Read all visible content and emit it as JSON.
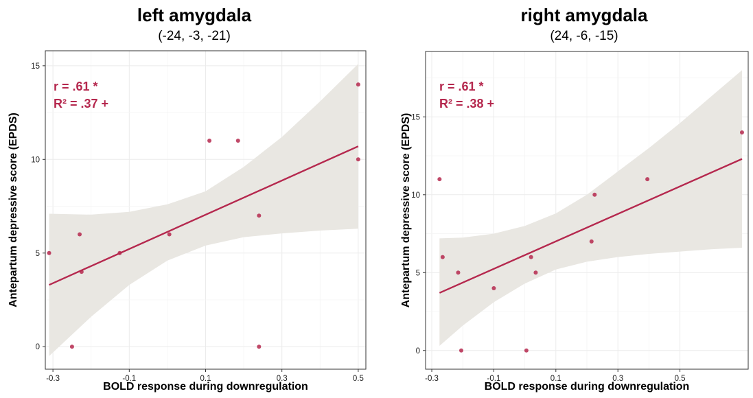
{
  "accent_color": "#b5284e",
  "ribbon_color": "#e9e7e2",
  "chart_data": [
    {
      "type": "scatter",
      "title": "left amygdala",
      "subtitle": "(-24, -3, -21)",
      "xlabel": "BOLD response during downregulation",
      "ylabel": "Antepartum depressive score (EPDS)",
      "xlim": [
        -0.32,
        0.52
      ],
      "ylim": [
        -1.2,
        15.8
      ],
      "xticks": [
        -0.3,
        -0.1,
        0.1,
        0.3,
        0.5
      ],
      "xtick_labels": [
        "-0.3",
        "-0.1",
        "0.1",
        "0.3",
        "0.5"
      ],
      "yticks": [
        0,
        5,
        10,
        15
      ],
      "ytick_labels": [
        "0",
        "5",
        "10",
        "15"
      ],
      "grid": true,
      "points": [
        {
          "x": -0.31,
          "y": 5
        },
        {
          "x": -0.25,
          "y": 0
        },
        {
          "x": -0.23,
          "y": 6
        },
        {
          "x": -0.225,
          "y": 4
        },
        {
          "x": -0.125,
          "y": 5
        },
        {
          "x": 0.005,
          "y": 6
        },
        {
          "x": 0.11,
          "y": 11
        },
        {
          "x": 0.185,
          "y": 11
        },
        {
          "x": 0.24,
          "y": 0
        },
        {
          "x": 0.24,
          "y": 7
        },
        {
          "x": 0.5,
          "y": 14
        },
        {
          "x": 0.5,
          "y": 10
        }
      ],
      "fit_line": {
        "x": [
          -0.31,
          0.5
        ],
        "y": [
          3.3,
          10.7
        ]
      },
      "confidence_band": {
        "x": [
          -0.31,
          -0.2,
          -0.1,
          0.0,
          0.1,
          0.2,
          0.3,
          0.4,
          0.5
        ],
        "lower": [
          -0.5,
          1.6,
          3.3,
          4.6,
          5.4,
          5.85,
          6.05,
          6.2,
          6.3
        ],
        "upper": [
          7.1,
          7.05,
          7.2,
          7.6,
          8.3,
          9.6,
          11.2,
          13.1,
          15.1
        ]
      },
      "annotations": [
        "r = .61 *",
        "R² = .37 +"
      ]
    },
    {
      "type": "scatter",
      "title": "right amygdala",
      "subtitle": "(24, -6, -15)",
      "xlabel": "BOLD response during downregulation",
      "ylabel": "Antepartum depressive score (EPDS)",
      "xlim": [
        -0.32,
        0.72
      ],
      "ylim": [
        -1.2,
        19.2
      ],
      "xticks": [
        -0.3,
        -0.1,
        0.1,
        0.3,
        0.5
      ],
      "xtick_labels": [
        "-0.3",
        "-0.1",
        "0.1",
        "0.3",
        "0.5"
      ],
      "yticks": [
        0,
        5,
        10,
        15
      ],
      "ytick_labels": [
        "0",
        "5",
        "10",
        "15"
      ],
      "grid": true,
      "points": [
        {
          "x": -0.275,
          "y": 11
        },
        {
          "x": -0.265,
          "y": 6
        },
        {
          "x": -0.215,
          "y": 5
        },
        {
          "x": -0.205,
          "y": 0
        },
        {
          "x": -0.1,
          "y": 4
        },
        {
          "x": 0.005,
          "y": 0
        },
        {
          "x": 0.02,
          "y": 6
        },
        {
          "x": 0.035,
          "y": 5
        },
        {
          "x": 0.215,
          "y": 7
        },
        {
          "x": 0.225,
          "y": 10
        },
        {
          "x": 0.395,
          "y": 11
        },
        {
          "x": 0.7,
          "y": 14
        }
      ],
      "fit_line": {
        "x": [
          -0.275,
          0.7
        ],
        "y": [
          3.7,
          12.3
        ]
      },
      "confidence_band": {
        "x": [
          -0.275,
          -0.2,
          -0.1,
          0.0,
          0.1,
          0.2,
          0.3,
          0.4,
          0.5,
          0.6,
          0.7
        ],
        "lower": [
          0.3,
          1.6,
          3.1,
          4.3,
          5.2,
          5.7,
          6.0,
          6.2,
          6.35,
          6.5,
          6.6
        ],
        "upper": [
          7.2,
          7.25,
          7.5,
          8.0,
          8.8,
          10.0,
          11.5,
          13.0,
          14.6,
          16.3,
          18.0
        ]
      },
      "annotations": [
        "r = .61 *",
        "R² = .38 +"
      ]
    }
  ]
}
